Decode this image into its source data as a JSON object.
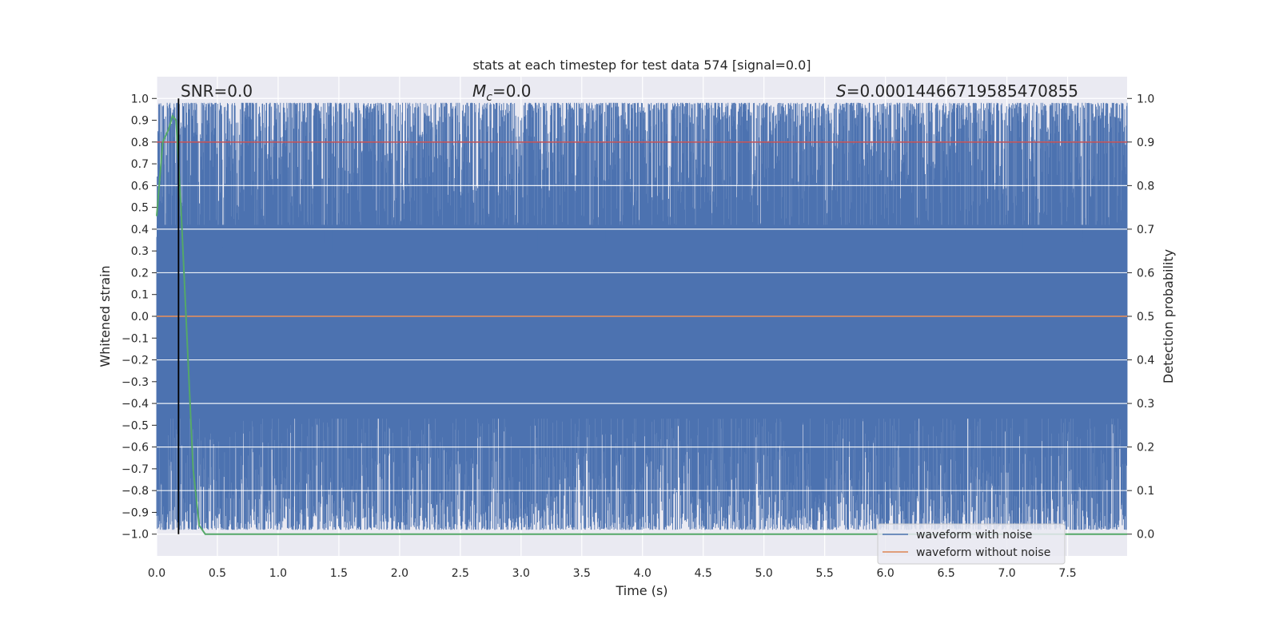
{
  "chart_data": {
    "type": "line",
    "title": "stats at each timestep for test data 574 [signal=0.0]",
    "xlabel": "Time (s)",
    "ylabel": "Whitened strain",
    "ylabel_right": "Detection probability",
    "xlim": [
      0.0,
      7.99
    ],
    "ylim": [
      -1.1,
      1.1
    ],
    "ylim_right": [
      -0.05,
      1.05
    ],
    "x_ticks": [
      "0.0",
      "0.5",
      "1.0",
      "1.5",
      "2.0",
      "2.5",
      "3.0",
      "3.5",
      "4.0",
      "4.5",
      "5.0",
      "5.5",
      "6.0",
      "6.5",
      "7.0",
      "7.5"
    ],
    "y_ticks": [
      "1.0",
      "0.9",
      "0.8",
      "0.7",
      "0.6",
      "0.5",
      "0.4",
      "0.3",
      "0.2",
      "0.1",
      "0.0",
      "−0.1",
      "−0.2",
      "−0.3",
      "−0.4",
      "−0.5",
      "−0.6",
      "−0.7",
      "−0.8",
      "−0.9",
      "−1.0"
    ],
    "y_ticks_right": [
      "1.0",
      "0.9",
      "0.8",
      "0.7",
      "0.6",
      "0.5",
      "0.4",
      "0.3",
      "0.2",
      "0.1",
      "0.0"
    ],
    "grid": true,
    "annotations": {
      "snr": "SNR=0.0",
      "mc_symbol": "M",
      "mc_sub": "c",
      "mc_value": "=0.0",
      "s_symbol": "S",
      "s_value": "=0.00014466719585470855"
    },
    "vline_x": 0.18,
    "threshold_prob": 0.9,
    "series": [
      {
        "name": "waveform with noise",
        "color": "#4c72b0",
        "description": "whitened strain noise, normalized, spanning approx -1.0 to 1.0 across the full time range"
      },
      {
        "name": "waveform without noise",
        "color": "#dd8452",
        "values_constant": 0.0
      },
      {
        "name": "detection probability",
        "color": "#55a868",
        "x": [
          0.0,
          0.05,
          0.1,
          0.13,
          0.16,
          0.2,
          0.25,
          0.3,
          0.35,
          0.4,
          1.0,
          2.0,
          3.0,
          4.0,
          5.0,
          6.0,
          7.0,
          7.99
        ],
        "values": [
          0.73,
          0.9,
          0.93,
          0.96,
          0.95,
          0.75,
          0.45,
          0.15,
          0.02,
          0.0,
          0.0,
          0.0,
          0.0,
          0.0,
          0.0,
          0.0,
          0.0,
          0.0
        ]
      },
      {
        "name": "threshold",
        "color": "#c44e52",
        "values_constant": 0.9
      }
    ],
    "legend": {
      "placement": "lower-right",
      "entries": [
        "waveform with noise",
        "waveform without noise"
      ]
    }
  }
}
